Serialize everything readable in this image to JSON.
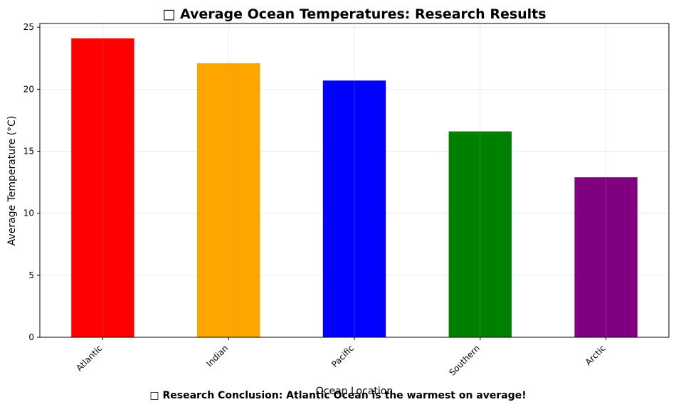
{
  "chart_data": {
    "type": "bar",
    "title": "□ Average Ocean Temperatures: Research Results",
    "xlabel": "Ocean Location",
    "ylabel": "Average Temperature (°C)",
    "categories": [
      "Atlantic",
      "Indian",
      "Pacific",
      "Southern",
      "Arctic"
    ],
    "values": [
      24.1,
      22.1,
      20.7,
      16.6,
      12.9
    ],
    "colors": [
      "#ff0000",
      "#ffa500",
      "#0000ff",
      "#008000",
      "#800080"
    ],
    "ylim": [
      0,
      25.3
    ],
    "yticks": [
      0,
      5,
      10,
      15,
      20,
      25
    ],
    "grid": true,
    "legend": "none"
  },
  "conclusion": "□ Research Conclusion: Atlantic Ocean is the warmest on average!"
}
